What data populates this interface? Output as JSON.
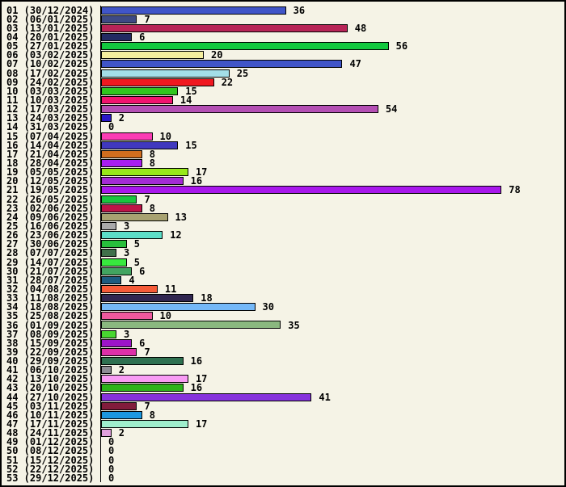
{
  "window": {
    "background_color": "#F5F3E6",
    "border_color": "#000000",
    "text_color": "#000000"
  },
  "chart_data": {
    "type": "bar",
    "orientation": "horizontal",
    "title": "",
    "xlabel": "",
    "ylabel": "",
    "xlim": [
      0,
      88
    ],
    "grid": false,
    "legend": "none",
    "categories": [
      "01 (30/12/2024)",
      "02 (06/01/2025)",
      "03 (13/01/2025)",
      "04 (20/01/2025)",
      "05 (27/01/2025)",
      "06 (03/02/2025)",
      "07 (10/02/2025)",
      "08 (17/02/2025)",
      "09 (24/02/2025)",
      "10 (03/03/2025)",
      "11 (10/03/2025)",
      "12 (17/03/2025)",
      "13 (24/03/2025)",
      "14 (31/03/2025)",
      "15 (07/04/2025)",
      "16 (14/04/2025)",
      "17 (21/04/2025)",
      "18 (28/04/2025)",
      "19 (05/05/2025)",
      "20 (12/05/2025)",
      "21 (19/05/2025)",
      "22 (26/05/2025)",
      "23 (02/06/2025)",
      "24 (09/06/2025)",
      "25 (16/06/2025)",
      "26 (23/06/2025)",
      "27 (30/06/2025)",
      "28 (07/07/2025)",
      "29 (14/07/2025)",
      "30 (21/07/2025)",
      "31 (28/07/2025)",
      "32 (04/08/2025)",
      "33 (11/08/2025)",
      "34 (18/08/2025)",
      "35 (25/08/2025)",
      "36 (01/09/2025)",
      "37 (08/09/2025)",
      "38 (15/09/2025)",
      "39 (22/09/2025)",
      "40 (29/09/2025)",
      "41 (06/10/2025)",
      "42 (13/10/2025)",
      "43 (20/10/2025)",
      "44 (27/10/2025)",
      "45 (03/11/2025)",
      "46 (10/11/2025)",
      "47 (17/11/2025)",
      "48 (24/11/2025)",
      "49 (01/12/2025)",
      "50 (08/12/2025)",
      "51 (15/12/2025)",
      "52 (22/12/2025)",
      "53 (29/12/2025)"
    ],
    "values": [
      36,
      7,
      48,
      6,
      56,
      20,
      47,
      25,
      22,
      15,
      14,
      54,
      2,
      0,
      10,
      15,
      8,
      8,
      17,
      16,
      78,
      7,
      8,
      13,
      3,
      12,
      5,
      3,
      5,
      6,
      4,
      11,
      18,
      30,
      10,
      35,
      3,
      6,
      7,
      16,
      2,
      17,
      16,
      41,
      7,
      8,
      17,
      2,
      0,
      0,
      0,
      0,
      0
    ],
    "bar_colors": [
      "#4055C8",
      "#3E4A84",
      "#B82457",
      "#232B62",
      "#12C83E",
      "#F5EE9E",
      "#4055C8",
      "#A3DEE8",
      "#F01820",
      "#30C61E",
      "#F0146E",
      "#B44FB4",
      "#2A18C8",
      "",
      "#FA3CB4",
      "#4038BE",
      "#D26E1E",
      "#A81EF0",
      "#97E81A",
      "#A32BD4",
      "#A817EC",
      "#19C53F",
      "#BE1448",
      "#A8A271",
      "#A9A9A9",
      "#5CDEC8",
      "#28BE3C",
      "#40704A",
      "#38E83E",
      "#42A460",
      "#1C5C80",
      "#F55B38",
      "#302650",
      "#74B8F8",
      "#EE599E",
      "#8AB87F",
      "#48D630",
      "#9C14C8",
      "#DC30A8",
      "#2E7050",
      "#8C8C94",
      "#F89CF4",
      "#2DB31C",
      "#8632DC",
      "#811C3C",
      "#1C97E0",
      "#9FEECC",
      "#E0A0DC",
      "",
      "",
      "",
      "",
      ""
    ]
  }
}
